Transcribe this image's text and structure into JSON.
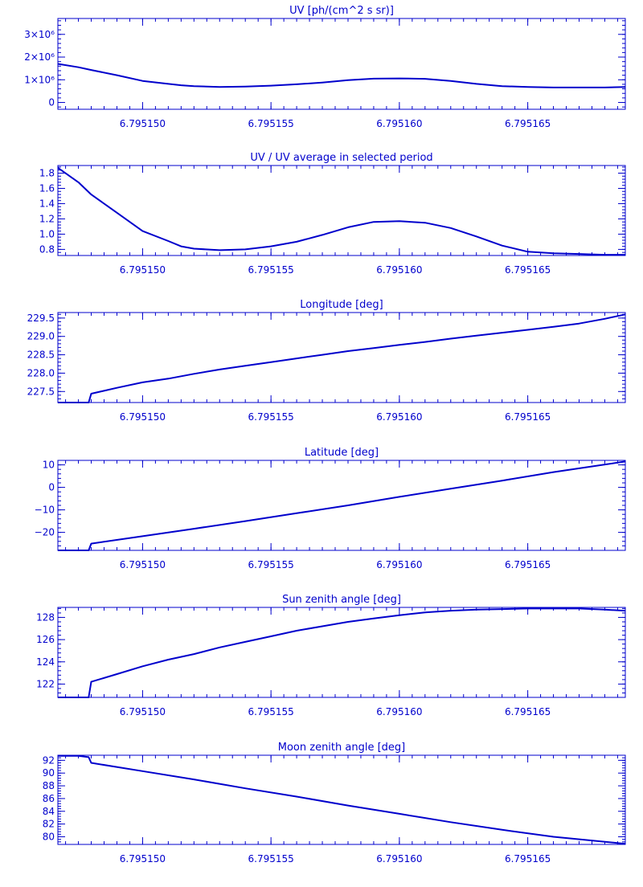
{
  "chart_data": [
    {
      "type": "line",
      "title": "UV [ph/(cm^2 s sr)]",
      "xlim": [
        6.7951467,
        6.7951688
      ],
      "ylim": [
        -300000,
        3700000
      ],
      "xticks": [
        6.79515,
        6.795155,
        6.79516,
        6.795165
      ],
      "xtick_labels": [
        "6.795150",
        "6.795155",
        "6.795160",
        "6.795165"
      ],
      "yticks": [
        0,
        1000000,
        2000000,
        3000000
      ],
      "ytick_labels": [
        "0",
        "1×10⁶",
        "2×10⁶",
        "3×10⁶"
      ],
      "x": [
        6.7951467,
        6.7951475,
        6.795148,
        6.795149,
        6.79515,
        6.795151,
        6.7951515,
        6.795152,
        6.795153,
        6.795154,
        6.795155,
        6.795156,
        6.795157,
        6.795158,
        6.795159,
        6.79516,
        6.795161,
        6.795162,
        6.795163,
        6.795164,
        6.795165,
        6.795166,
        6.795167,
        6.795168,
        6.7951688
      ],
      "y": [
        1700000,
        1550000,
        1430000,
        1200000,
        950000,
        820000,
        760000,
        720000,
        680000,
        700000,
        740000,
        800000,
        880000,
        980000,
        1050000,
        1060000,
        1040000,
        950000,
        820000,
        720000,
        680000,
        660000,
        660000,
        660000,
        680000
      ]
    },
    {
      "type": "line",
      "title": "UV / UV average in selected period",
      "xlim": [
        6.7951467,
        6.7951688
      ],
      "ylim": [
        0.72,
        1.9
      ],
      "xticks": [
        6.79515,
        6.795155,
        6.79516,
        6.795165
      ],
      "xtick_labels": [
        "6.795150",
        "6.795155",
        "6.795160",
        "6.795165"
      ],
      "yticks": [
        0.8,
        1.0,
        1.2,
        1.4,
        1.6,
        1.8
      ],
      "ytick_labels": [
        "0.8",
        "1.0",
        "1.2",
        "1.4",
        "1.6",
        "1.8"
      ],
      "x": [
        6.7951467,
        6.7951475,
        6.795148,
        6.795149,
        6.79515,
        6.795151,
        6.7951515,
        6.795152,
        6.795153,
        6.795154,
        6.795155,
        6.795156,
        6.795157,
        6.795158,
        6.795159,
        6.79516,
        6.795161,
        6.795162,
        6.795163,
        6.795164,
        6.795165,
        6.795166,
        6.795167,
        6.795168,
        6.7951688
      ],
      "y": [
        1.87,
        1.68,
        1.52,
        1.28,
        1.04,
        0.91,
        0.84,
        0.81,
        0.79,
        0.8,
        0.84,
        0.9,
        0.99,
        1.09,
        1.16,
        1.17,
        1.15,
        1.08,
        0.97,
        0.85,
        0.77,
        0.75,
        0.74,
        0.73,
        0.73
      ]
    },
    {
      "type": "line",
      "title": "Longitude [deg]",
      "xlim": [
        6.7951467,
        6.7951688
      ],
      "ylim": [
        227.2,
        229.65
      ],
      "xticks": [
        6.79515,
        6.795155,
        6.79516,
        6.795165
      ],
      "xtick_labels": [
        "6.795150",
        "6.795155",
        "6.795160",
        "6.795165"
      ],
      "yticks": [
        227.5,
        228.0,
        228.5,
        229.0,
        229.5
      ],
      "ytick_labels": [
        "227.5",
        "228.0",
        "228.5",
        "229.0",
        "229.5"
      ],
      "x": [
        6.7951467,
        6.7951479,
        6.795148,
        6.795149,
        6.79515,
        6.795151,
        6.795152,
        6.795153,
        6.795154,
        6.795155,
        6.795156,
        6.795157,
        6.795158,
        6.795159,
        6.79516,
        6.795161,
        6.795162,
        6.795163,
        6.795164,
        6.795165,
        6.795166,
        6.795167,
        6.795168,
        6.7951688
      ],
      "y": [
        227.2,
        227.2,
        227.44,
        227.6,
        227.75,
        227.85,
        227.98,
        228.1,
        228.2,
        228.3,
        228.4,
        228.5,
        228.6,
        228.68,
        228.77,
        228.85,
        228.94,
        229.02,
        229.1,
        229.18,
        229.26,
        229.35,
        229.48,
        229.6
      ]
    },
    {
      "type": "line",
      "title": "Latitude [deg]",
      "xlim": [
        6.7951467,
        6.7951688
      ],
      "ylim": [
        -28,
        12
      ],
      "xticks": [
        6.79515,
        6.795155,
        6.79516,
        6.795165
      ],
      "xtick_labels": [
        "6.795150",
        "6.795155",
        "6.795160",
        "6.795165"
      ],
      "yticks": [
        -20,
        -10,
        0,
        10
      ],
      "ytick_labels": [
        "−20",
        "−10",
        "0",
        "10"
      ],
      "x": [
        6.7951467,
        6.7951479,
        6.795148,
        6.79515,
        6.795152,
        6.795154,
        6.795156,
        6.795158,
        6.79516,
        6.795162,
        6.795164,
        6.795166,
        6.7951688
      ],
      "y": [
        -28,
        -28,
        -25,
        -21.7,
        -18.4,
        -15,
        -11.5,
        -8,
        -4.2,
        -0.6,
        3,
        6.8,
        11.5
      ]
    },
    {
      "type": "line",
      "title": "Sun zenith angle [deg]",
      "xlim": [
        6.7951467,
        6.7951688
      ],
      "ylim": [
        120.8,
        128.9
      ],
      "xticks": [
        6.79515,
        6.795155,
        6.79516,
        6.795165
      ],
      "xtick_labels": [
        "6.795150",
        "6.795155",
        "6.795160",
        "6.795165"
      ],
      "yticks": [
        122,
        124,
        126,
        128
      ],
      "ytick_labels": [
        "122",
        "124",
        "126",
        "128"
      ],
      "x": [
        6.7951467,
        6.7951479,
        6.795148,
        6.795149,
        6.79515,
        6.795151,
        6.795152,
        6.795153,
        6.795154,
        6.795155,
        6.795156,
        6.795157,
        6.795158,
        6.795159,
        6.79516,
        6.795161,
        6.795162,
        6.795163,
        6.795164,
        6.795165,
        6.795166,
        6.795167,
        6.795168,
        6.7951688
      ],
      "y": [
        120.8,
        120.8,
        122.2,
        122.9,
        123.6,
        124.2,
        124.7,
        125.3,
        125.8,
        126.3,
        126.8,
        127.2,
        127.6,
        127.9,
        128.2,
        128.45,
        128.6,
        128.7,
        128.75,
        128.8,
        128.8,
        128.8,
        128.7,
        128.6
      ]
    },
    {
      "type": "line",
      "title": "Moon zenith angle [deg]",
      "xlim": [
        6.7951467,
        6.7951688
      ],
      "ylim": [
        78.8,
        92.8
      ],
      "xticks": [
        6.79515,
        6.795155,
        6.79516,
        6.795165
      ],
      "xtick_labels": [
        "6.795150",
        "6.795155",
        "6.795160",
        "6.795165"
      ],
      "yticks": [
        80,
        82,
        84,
        86,
        88,
        90,
        92
      ],
      "ytick_labels": [
        "80",
        "82",
        "84",
        "86",
        "88",
        "90",
        "92"
      ],
      "x": [
        6.7951467,
        6.7951475,
        6.7951479,
        6.795148,
        6.79515,
        6.795152,
        6.795154,
        6.795156,
        6.795158,
        6.79516,
        6.795162,
        6.795164,
        6.795166,
        6.7951688
      ],
      "y": [
        92.7,
        92.7,
        92.5,
        91.6,
        90.3,
        89.0,
        87.6,
        86.3,
        84.9,
        83.6,
        82.3,
        81.1,
        80.0,
        78.9
      ]
    }
  ]
}
